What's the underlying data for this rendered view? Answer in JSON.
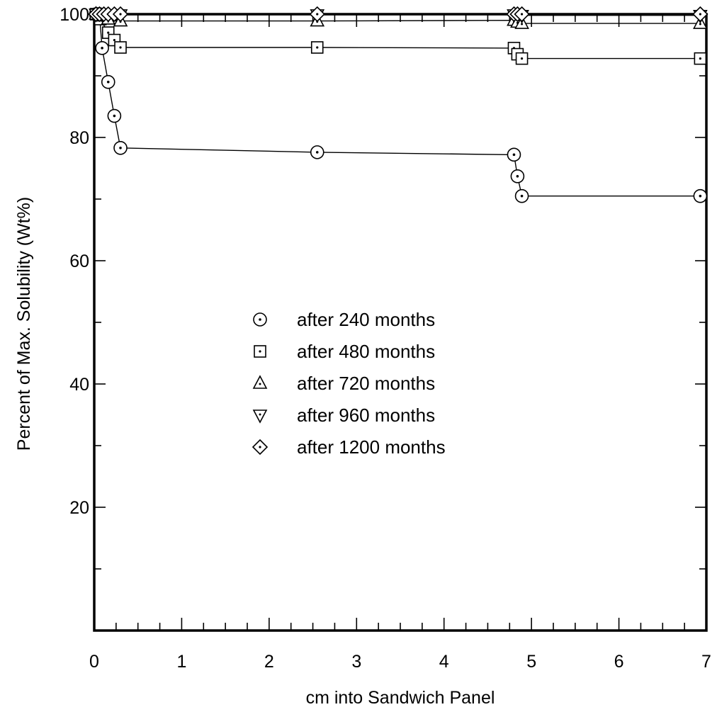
{
  "chart_data": {
    "type": "scatter",
    "title": "",
    "xlabel": "cm into Sandwich Panel",
    "ylabel": "Percent of Max. Solubility (Wt%)",
    "xlim": [
      0,
      7
    ],
    "ylim": [
      0,
      100
    ],
    "x_ticks": [
      0,
      1,
      2,
      3,
      4,
      5,
      6,
      7
    ],
    "x_tick_labels": [
      "0",
      "1",
      "2",
      "3",
      "4",
      "5",
      "6",
      "7"
    ],
    "y_ticks": [
      20,
      40,
      60,
      80,
      100
    ],
    "y_tick_labels": [
      "20",
      "40",
      "60",
      "80",
      "100"
    ],
    "grid": false,
    "legend_position": "center-left",
    "series": [
      {
        "name": "after 240 months",
        "marker": "circle",
        "points": [
          [
            0.02,
            100
          ],
          [
            0.04,
            100
          ],
          [
            0.06,
            100
          ],
          [
            0.09,
            94.5
          ],
          [
            0.16,
            89
          ],
          [
            0.23,
            83.5
          ],
          [
            0.3,
            78.3
          ],
          [
            2.55,
            77.6
          ],
          [
            4.8,
            77.2
          ],
          [
            4.84,
            73.7
          ],
          [
            4.89,
            70.5
          ],
          [
            6.93,
            70.5
          ]
        ]
      },
      {
        "name": "after 480 months",
        "marker": "square",
        "points": [
          [
            0.02,
            100
          ],
          [
            0.07,
            99.2
          ],
          [
            0.16,
            97
          ],
          [
            0.23,
            95.8
          ],
          [
            0.3,
            94.6
          ],
          [
            2.55,
            94.6
          ],
          [
            4.8,
            94.5
          ],
          [
            4.84,
            93.5
          ],
          [
            4.89,
            92.8
          ],
          [
            6.93,
            92.8
          ]
        ]
      },
      {
        "name": "after 720 months",
        "marker": "triangle-up",
        "points": [
          [
            0.02,
            100
          ],
          [
            0.09,
            99.7
          ],
          [
            0.16,
            99.2
          ],
          [
            0.3,
            98.9
          ],
          [
            2.55,
            98.9
          ],
          [
            4.8,
            99.0
          ],
          [
            4.84,
            98.7
          ],
          [
            4.89,
            98.5
          ],
          [
            6.93,
            98.5
          ]
        ]
      },
      {
        "name": "after 960 months",
        "marker": "triangle-down",
        "points": [
          [
            0.02,
            100
          ],
          [
            0.09,
            100
          ],
          [
            0.16,
            99.9
          ],
          [
            0.3,
            99.9
          ],
          [
            2.55,
            99.9
          ],
          [
            4.8,
            99.9
          ],
          [
            4.89,
            99.8
          ],
          [
            6.93,
            99.8
          ]
        ]
      },
      {
        "name": "after 1200 months",
        "marker": "diamond",
        "points": [
          [
            0.02,
            100
          ],
          [
            0.06,
            100
          ],
          [
            0.11,
            100
          ],
          [
            0.16,
            100
          ],
          [
            0.23,
            100
          ],
          [
            0.3,
            100
          ],
          [
            2.55,
            100
          ],
          [
            4.8,
            100
          ],
          [
            4.84,
            100
          ],
          [
            4.89,
            100
          ],
          [
            6.93,
            100
          ]
        ]
      }
    ]
  }
}
